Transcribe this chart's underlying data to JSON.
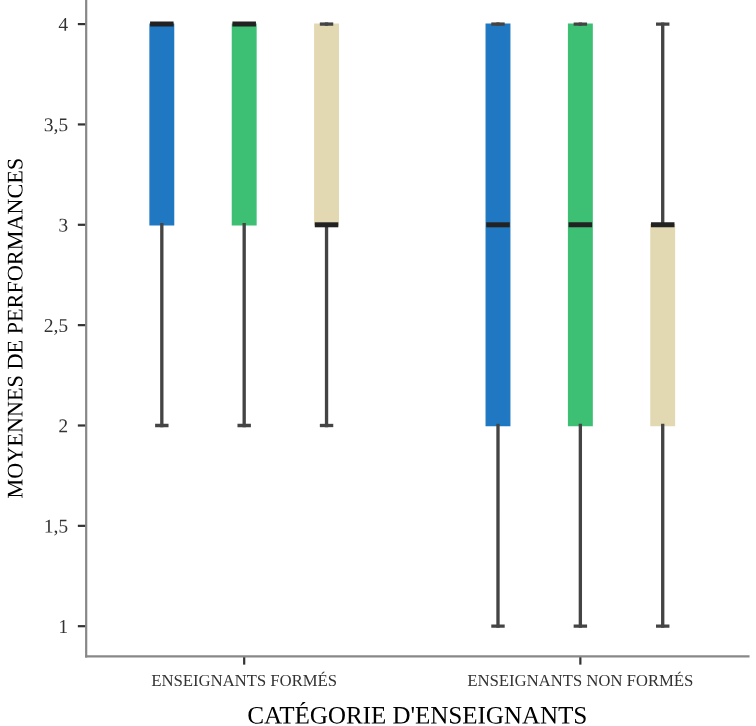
{
  "chart_data": {
    "type": "box",
    "xlabel": "CATÉGORIE D'ENSEIGNANTS",
    "ylabel": "MOYENNES DE PERFORMANCES",
    "categories": [
      "ENSEIGNANTS FORMÉS",
      "ENSEIGNANTS NON FORMÉS"
    ],
    "ylim": [
      0.85,
      4.12
    ],
    "yticks": [
      1,
      {
        "value": 1.5,
        "label": "1,5"
      },
      2,
      {
        "value": 2.5,
        "label": "2,5"
      },
      3,
      {
        "value": 3.5,
        "label": "3,5"
      },
      4
    ],
    "grid": false,
    "legend": false,
    "series": [
      {
        "color": "#1f78c1",
        "boxes": [
          {
            "low": 2,
            "q1": 3,
            "median": 4,
            "q3": 4,
            "high": 4
          },
          {
            "low": 1,
            "q1": 2,
            "median": 3,
            "q3": 4,
            "high": 4
          }
        ]
      },
      {
        "color": "#3dbf74",
        "boxes": [
          {
            "low": 2,
            "q1": 3,
            "median": 4,
            "q3": 4,
            "high": 4
          },
          {
            "low": 1,
            "q1": 2,
            "median": 3,
            "q3": 4,
            "high": 4
          }
        ]
      },
      {
        "color": "#e2d9b2",
        "boxes": [
          {
            "low": 2,
            "q1": 3,
            "median": 3,
            "q3": 4,
            "high": 4
          },
          {
            "low": 1,
            "q1": 2,
            "median": 3,
            "q3": 3,
            "high": 4
          }
        ]
      }
    ]
  }
}
